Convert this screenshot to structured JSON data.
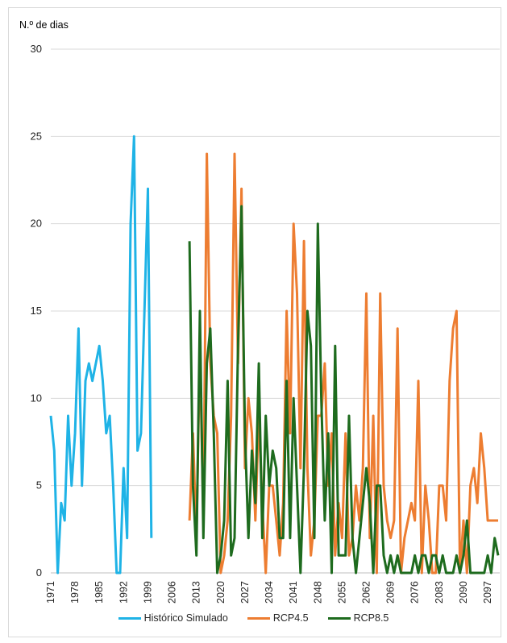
{
  "chart_data": {
    "type": "line",
    "ylabel": "N.º de dias",
    "ylim": [
      0,
      30
    ],
    "yticks": [
      0,
      5,
      10,
      15,
      20,
      25,
      30
    ],
    "xlim": [
      1971,
      2100
    ],
    "xticks": [
      1971,
      1978,
      1985,
      1992,
      1999,
      2006,
      2013,
      2020,
      2027,
      2034,
      2041,
      2048,
      2055,
      2062,
      2069,
      2076,
      2083,
      2090,
      2097
    ],
    "grid": "horizontal",
    "legend_position": "bottom",
    "series": [
      {
        "name": "Histórico Simulado",
        "color": "#1fb3e6",
        "x": [
          1971,
          1972,
          1973,
          1974,
          1975,
          1976,
          1977,
          1978,
          1979,
          1980,
          1981,
          1982,
          1983,
          1984,
          1985,
          1986,
          1987,
          1988,
          1989,
          1990,
          1991,
          1992,
          1993,
          1994,
          1995,
          1996,
          1997,
          1998,
          1999,
          2000
        ],
        "y": [
          9,
          7,
          0,
          4,
          3,
          9,
          5,
          8,
          14,
          5,
          11,
          12,
          11,
          12,
          13,
          11,
          8,
          9,
          5,
          0,
          0,
          6,
          2,
          20,
          25,
          7,
          8,
          15,
          22,
          2
        ]
      },
      {
        "name": "RCP4.5",
        "color": "#ed7d31",
        "x": [
          2011,
          2012,
          2013,
          2014,
          2015,
          2016,
          2017,
          2018,
          2019,
          2020,
          2021,
          2022,
          2023,
          2024,
          2025,
          2026,
          2027,
          2028,
          2029,
          2030,
          2031,
          2032,
          2033,
          2034,
          2035,
          2036,
          2037,
          2038,
          2039,
          2040,
          2041,
          2042,
          2043,
          2044,
          2045,
          2046,
          2047,
          2048,
          2049,
          2050,
          2051,
          2052,
          2053,
          2054,
          2055,
          2056,
          2057,
          2058,
          2059,
          2060,
          2061,
          2062,
          2063,
          2064,
          2065,
          2066,
          2067,
          2068,
          2069,
          2070,
          2071,
          2072,
          2073,
          2074,
          2075,
          2076,
          2077,
          2078,
          2079,
          2080,
          2081,
          2082,
          2083,
          2084,
          2085,
          2086,
          2087,
          2088,
          2089,
          2090,
          2091,
          2092,
          2093,
          2094,
          2095,
          2096,
          2097,
          2098,
          2099,
          2100
        ],
        "y": [
          3,
          8,
          2,
          13,
          3,
          24,
          12,
          9,
          8,
          0,
          1,
          3,
          9,
          24,
          12,
          22,
          6,
          10,
          8,
          3,
          9,
          4,
          0,
          5,
          5,
          3,
          1,
          4,
          15,
          8,
          20,
          16,
          6,
          19,
          6,
          1,
          3,
          9,
          9,
          12,
          5,
          8,
          1,
          4,
          2,
          8,
          1,
          2,
          5,
          3,
          6,
          16,
          2,
          9,
          0,
          16,
          5,
          3,
          2,
          3,
          14,
          0,
          2,
          3,
          4,
          3,
          11,
          0,
          5,
          3,
          0,
          0,
          5,
          5,
          3,
          11,
          14,
          15,
          0,
          3,
          0,
          5,
          6,
          4,
          8,
          6,
          3,
          3,
          3,
          3
        ],
        "draw_until": 2100
      },
      {
        "name": "RCP8.5",
        "color": "#1e6b1e",
        "x": [
          2011,
          2012,
          2013,
          2014,
          2015,
          2016,
          2017,
          2018,
          2019,
          2020,
          2021,
          2022,
          2023,
          2024,
          2025,
          2026,
          2027,
          2028,
          2029,
          2030,
          2031,
          2032,
          2033,
          2034,
          2035,
          2036,
          2037,
          2038,
          2039,
          2040,
          2041,
          2042,
          2043,
          2044,
          2045,
          2046,
          2047,
          2048,
          2049,
          2050,
          2051,
          2052,
          2053,
          2054,
          2055,
          2056,
          2057,
          2058,
          2059,
          2060,
          2061,
          2062,
          2063,
          2064,
          2065,
          2066,
          2067,
          2068,
          2069,
          2070,
          2071,
          2072,
          2073,
          2074,
          2075,
          2076,
          2077,
          2078,
          2079,
          2080,
          2081,
          2082,
          2083,
          2084,
          2085,
          2086,
          2087,
          2088,
          2089,
          2090,
          2091,
          2092,
          2093,
          2094,
          2095,
          2096,
          2097,
          2098,
          2099,
          2100
        ],
        "y": [
          19,
          5,
          1,
          15,
          2,
          12,
          14,
          8,
          0,
          1,
          3,
          11,
          1,
          2,
          13,
          21,
          8,
          2,
          7,
          4,
          12,
          2,
          9,
          5,
          7,
          6,
          2,
          2,
          11,
          2,
          10,
          5,
          0,
          6,
          15,
          13,
          2,
          20,
          10,
          3,
          8,
          0,
          13,
          1,
          1,
          1,
          9,
          2,
          0,
          2,
          4,
          6,
          4,
          0,
          5,
          5,
          1,
          0,
          1,
          0,
          1,
          0,
          0,
          0,
          0,
          1,
          0,
          1,
          1,
          0,
          1,
          1,
          0,
          1,
          0,
          0,
          0,
          1,
          0,
          1,
          3,
          0,
          0,
          0,
          0,
          0,
          1,
          0,
          2,
          1
        ]
      }
    ]
  }
}
